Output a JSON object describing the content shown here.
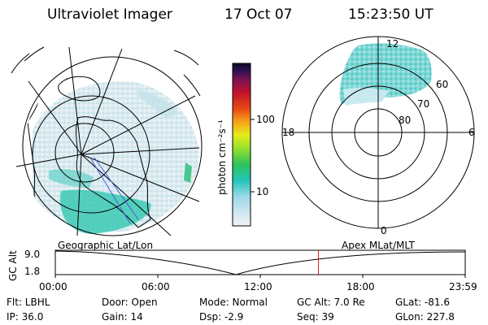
{
  "header": {
    "instrument": "Ultraviolet Imager",
    "date": "17 Oct 07",
    "time": "15:23:50 UT"
  },
  "colorbar": {
    "unit_label": "photon cm⁻²s⁻¹",
    "ticks": [
      "100",
      "10"
    ]
  },
  "polar_plot": {
    "hour_labels": {
      "top": "12",
      "left": "18",
      "right": "6",
      "bottom": "0"
    },
    "lat_labels": [
      "60",
      "70",
      "80"
    ]
  },
  "timeline": {
    "left_title": "Geographic Lat/Lon",
    "right_title": "Apex MLat/MLT",
    "y_axis_label": "GC Alt",
    "y_ticks": [
      "9.0",
      "1.8"
    ],
    "x_ticks": [
      "00:00",
      "06:00",
      "12:00",
      "18:00",
      "23:59"
    ],
    "current_time_fraction": 0.642
  },
  "info": {
    "flt": "Flt: LBHL",
    "ip": "IP: 36.0",
    "door": "Door: Open",
    "gain": "Gain: 14",
    "mode": "Mode: Normal",
    "dsp": "Dsp:    -2.9",
    "gc_alt": "GC Alt: 7.0 Re",
    "seq": "Seq: 39",
    "glat": "GLat: -81.6",
    "glon": "GLon: 227.8"
  }
}
